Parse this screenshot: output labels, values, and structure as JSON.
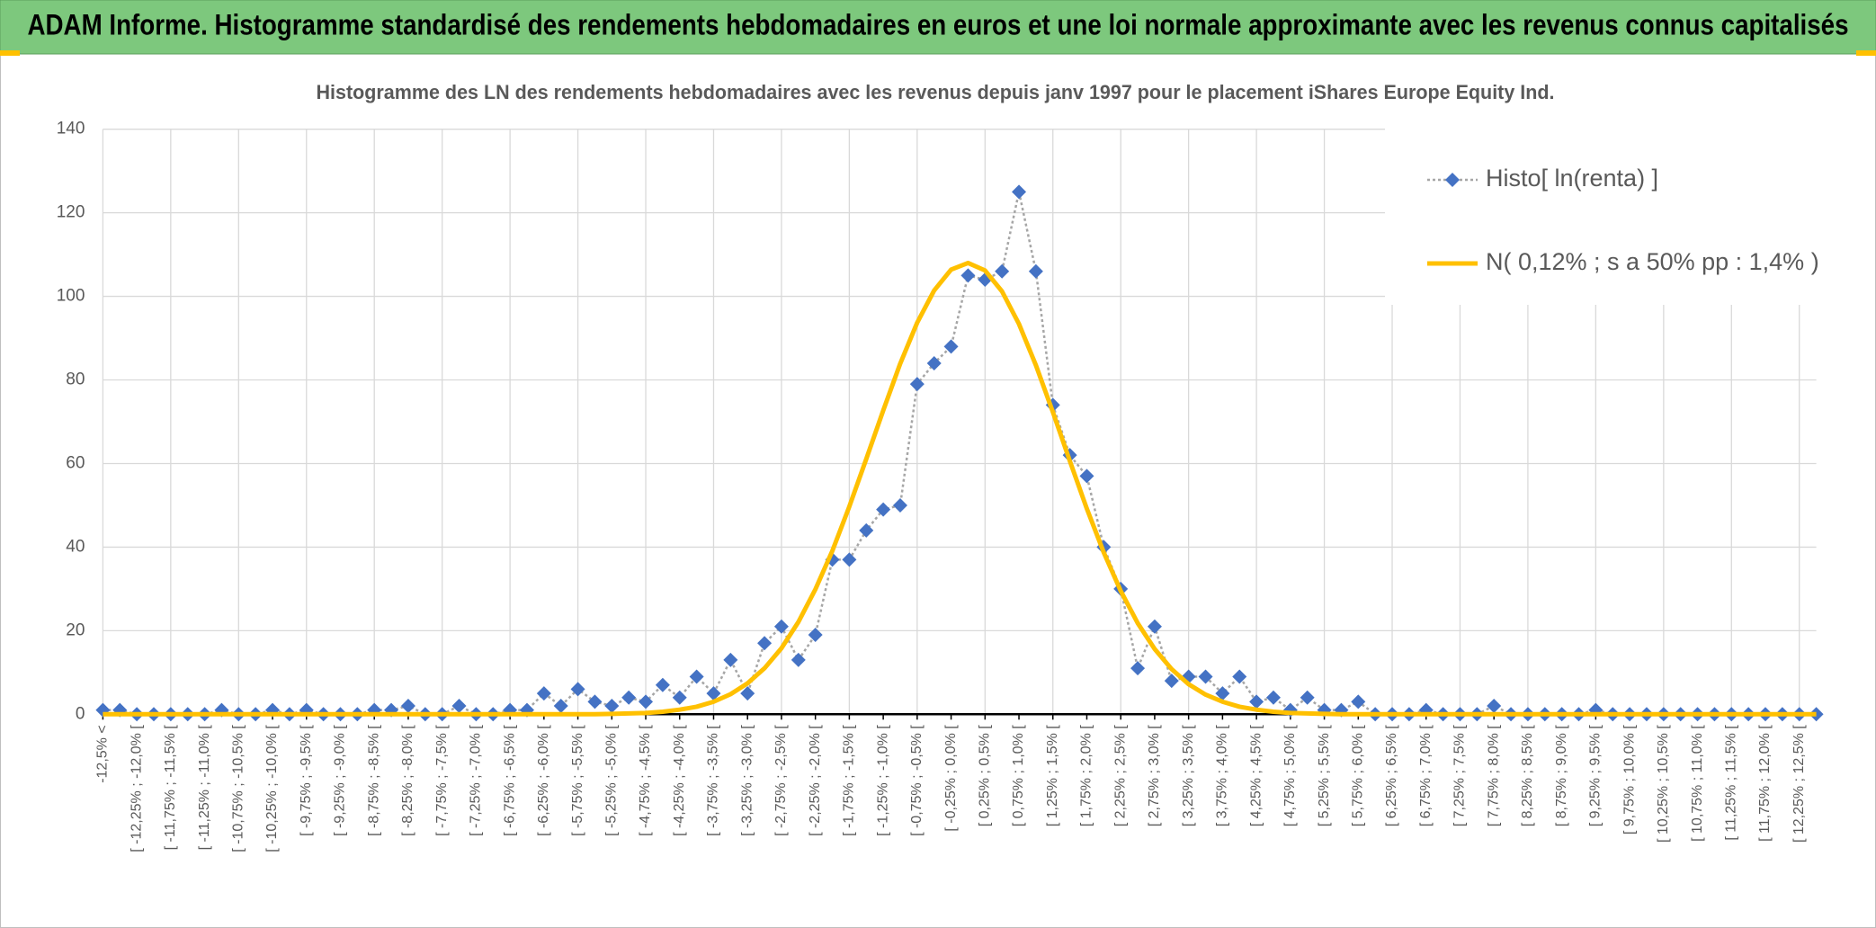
{
  "header": {
    "title": "ADAM Informe. Histogramme standardisé des rendements hebdomadaires en euros et une loi normale approximante avec les revenus connus capitalisés"
  },
  "chart_data": {
    "type": "line",
    "title": "Histogramme des LN des rendements hebdomadaires avec les revenus depuis janv 1997 pour le placement iShares Europe Equity Ind.",
    "categories": [
      "-12,5% <",
      null,
      "[ -12,25% ; -12,0% [",
      null,
      "[ -11,75% ; -11,5% [",
      null,
      "[ -11,25% ; -11,0% [",
      null,
      "[ -10,75% ; -10,5% [",
      null,
      "[ -10,25% ; -10,0% [",
      null,
      "[ -9,75% ; -9,5% [",
      null,
      "[ -9,25% ; -9,0% [",
      null,
      "[ -8,75% ; -8,5% [",
      null,
      "[ -8,25% ; -8,0% [",
      null,
      "[ -7,75% ; -7,5% [",
      null,
      "[ -7,25% ; -7,0% [",
      null,
      "[ -6,75% ; -6,5% [",
      null,
      "[ -6,25% ; -6,0% [",
      null,
      "[ -5,75% ; -5,5% [",
      null,
      "[ -5,25% ; -5,0% [",
      null,
      "[ -4,75% ; -4,5% [",
      null,
      "[ -4,25% ; -4,0% [",
      null,
      "[ -3,75% ; -3,5% [",
      null,
      "[ -3,25% ; -3,0% [",
      null,
      "[ -2,75% ; -2,5% [",
      null,
      "[ -2,25% ; -2,0% [",
      null,
      "[ -1,75% ; -1,5% [",
      null,
      "[ -1,25% ; -1,0% [",
      null,
      "[ -0,75% ; -0,5% [",
      null,
      "[ -0,25% ; 0,0% [",
      null,
      "[ 0,25% ; 0,5% [",
      null,
      "[ 0,75% ; 1,0% [",
      null,
      "[ 1,25% ; 1,5% [",
      null,
      "[ 1,75% ; 2,0% [",
      null,
      "[ 2,25% ; 2,5% [",
      null,
      "[ 2,75% ; 3,0% [",
      null,
      "[ 3,25% ; 3,5% [",
      null,
      "[ 3,75% ; 4,0% [",
      null,
      "[ 4,25% ; 4,5% [",
      null,
      "[ 4,75% ; 5,0% [",
      null,
      "[ 5,25% ; 5,5% [",
      null,
      "[ 5,75% ; 6,0% [",
      null,
      "[ 6,25% ; 6,5% [",
      null,
      "[ 6,75% ; 7,0% [",
      null,
      "[ 7,25% ; 7,5% [",
      null,
      "[ 7,75% ; 8,0% [",
      null,
      "[ 8,25% ; 8,5% [",
      null,
      "[ 8,75% ; 9,0% [",
      null,
      "[ 9,25% ; 9,5% [",
      null,
      "[ 9,75% ; 10,0% [",
      null,
      "[ 10,25% ; 10,5% [",
      null,
      "[ 10,75% ; 11,0% [",
      null,
      "[ 11,25% ; 11,5% [",
      null,
      "[ 11,75% ; 12,0% [",
      null,
      "[ 12,25% ; 12,5% [",
      null
    ],
    "series": [
      {
        "name": "Histo[ ln(renta) ]",
        "color": "#4472c4",
        "line_color": "#a6a6a6",
        "values": [
          1,
          1,
          0,
          0,
          0,
          0,
          0,
          1,
          0,
          0,
          1,
          0,
          1,
          0,
          0,
          0,
          1,
          1,
          2,
          0,
          0,
          2,
          0,
          0,
          1,
          1,
          5,
          2,
          6,
          3,
          2,
          4,
          3,
          7,
          4,
          9,
          5,
          13,
          5,
          17,
          21,
          13,
          19,
          37,
          37,
          44,
          49,
          50,
          79,
          84,
          88,
          105,
          104,
          106,
          125,
          106,
          74,
          62,
          57,
          40,
          30,
          11,
          21,
          8,
          9,
          9,
          5,
          9,
          3,
          4,
          1,
          4,
          1,
          1,
          3,
          0,
          0,
          0,
          1,
          0,
          0,
          0,
          2,
          0,
          0,
          0,
          0,
          0,
          1,
          0,
          0,
          0,
          0,
          0,
          0,
          0,
          0,
          0,
          0,
          0,
          0,
          0
        ]
      },
      {
        "name": "N( 0,12% ; s a 50% pp : 1,4% )",
        "color": "#ffc000",
        "values": [
          0,
          0,
          0,
          0,
          0,
          0,
          0,
          0,
          0,
          0,
          0,
          0,
          0,
          0,
          0,
          0,
          0,
          0,
          0,
          0,
          0,
          0,
          0,
          0,
          0,
          0,
          0,
          0,
          0,
          0,
          0.1,
          0.2,
          0.3,
          0.6,
          1.1,
          1.8,
          3.0,
          4.8,
          7.4,
          11.0,
          15.8,
          22.1,
          29.9,
          39.1,
          49.7,
          61.1,
          72.7,
          83.9,
          93.7,
          101.4,
          106.4,
          108,
          106.2,
          101.2,
          93.4,
          83.5,
          72.3,
          60.6,
          49.2,
          38.7,
          29.5,
          21.8,
          15.6,
          10.8,
          7.2,
          4.7,
          3.0,
          1.8,
          1.1,
          0.6,
          0.3,
          0.2,
          0.1,
          0,
          0,
          0,
          0,
          0,
          0,
          0,
          0,
          0,
          0,
          0,
          0,
          0,
          0,
          0,
          0,
          0,
          0,
          0,
          0,
          0,
          0,
          0,
          0,
          0,
          0,
          0,
          0,
          0
        ]
      }
    ],
    "ylim": [
      0,
      140
    ],
    "yticks": [
      0,
      20,
      40,
      60,
      80,
      100,
      120,
      140
    ],
    "grid": true,
    "legend": "top-right"
  }
}
